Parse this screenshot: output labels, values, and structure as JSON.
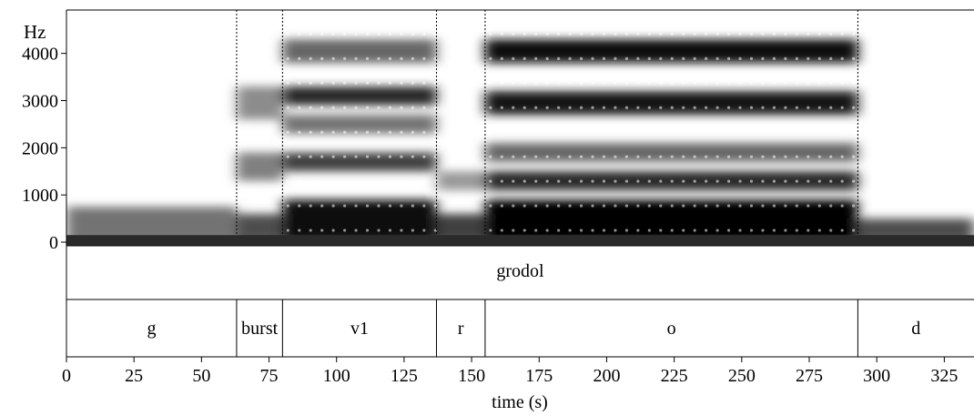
{
  "chart_data": {
    "type": "heatmap",
    "title": "",
    "xlabel": "time (s)",
    "ylabel": "Hz",
    "xlim": [
      0,
      336
    ],
    "ylim": [
      0,
      4900
    ],
    "x_ticks": [
      0,
      25,
      50,
      75,
      100,
      125,
      150,
      175,
      200,
      225,
      250,
      275,
      300,
      325
    ],
    "y_ticks": [
      0,
      1000,
      2000,
      3000,
      4000
    ],
    "boundaries": [
      63,
      80,
      137,
      155,
      293
    ],
    "word_tier": [
      {
        "label": "grodol",
        "start": 0,
        "end": 336
      }
    ],
    "segment_tier": [
      {
        "label": "g",
        "start": 0,
        "end": 63
      },
      {
        "label": "burst",
        "start": 63,
        "end": 80
      },
      {
        "label": "v1",
        "start": 80,
        "end": 137
      },
      {
        "label": "r",
        "start": 137,
        "end": 155
      },
      {
        "label": "o",
        "start": 155,
        "end": 293
      },
      {
        "label": "d",
        "start": 293,
        "end": 336
      }
    ],
    "formant_bands": [
      {
        "start": 0,
        "end": 63,
        "bands": [
          [
            0,
            750,
            0.55
          ]
        ]
      },
      {
        "start": 63,
        "end": 80,
        "bands": [
          [
            0,
            600,
            0.7
          ],
          [
            1300,
            1900,
            0.5
          ],
          [
            2600,
            3300,
            0.45
          ]
        ]
      },
      {
        "start": 80,
        "end": 137,
        "bands": [
          [
            0,
            900,
            0.95
          ],
          [
            1500,
            1900,
            0.75
          ],
          [
            2300,
            2700,
            0.55
          ],
          [
            2900,
            3300,
            0.85
          ],
          [
            3800,
            4300,
            0.6
          ]
        ]
      },
      {
        "start": 137,
        "end": 155,
        "bands": [
          [
            0,
            600,
            0.75
          ],
          [
            1100,
            1500,
            0.4
          ]
        ]
      },
      {
        "start": 155,
        "end": 293,
        "bands": [
          [
            0,
            900,
            1.0
          ],
          [
            1100,
            1500,
            0.85
          ],
          [
            1700,
            2100,
            0.6
          ],
          [
            2700,
            3200,
            0.9
          ],
          [
            3800,
            4300,
            0.95
          ]
        ]
      },
      {
        "start": 293,
        "end": 336,
        "bands": [
          [
            0,
            500,
            0.7
          ]
        ]
      }
    ]
  }
}
